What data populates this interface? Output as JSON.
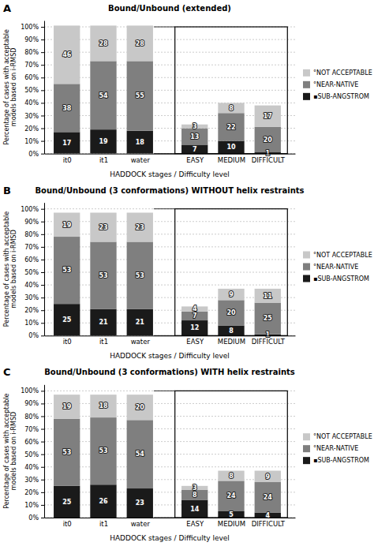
{
  "chart_data": [
    {
      "type": "bar",
      "stacked": true,
      "data_labels": true,
      "grid": true,
      "legend": "right",
      "title": "Bound/Unbound (extended)",
      "annotations": [
        "A"
      ],
      "x_label": "HADDOCK stages / Difficulty level",
      "y_label": "Percentage of cases with acceptable\nmodels based on i-RMSD",
      "categories": [
        "it0",
        "it1",
        "water",
        "EASY",
        "MEDIUM",
        "DIFFICULT"
      ],
      "series": [
        {
          "name": "▪SUB-ANGSTROM",
          "color": "#1a1a1a",
          "values": [
            17,
            19,
            18,
            7,
            10,
            1
          ]
        },
        {
          "name": "°NEAR-NATIVE",
          "color": "#7f7f7f",
          "values": [
            38,
            54,
            55,
            13,
            22,
            20
          ]
        },
        {
          "name": "°NOT ACCEPTABLE",
          "color": "#c8c8c8",
          "values": [
            46,
            28,
            28,
            3,
            8,
            17
          ]
        }
      ],
      "ylim": [
        0,
        105
      ],
      "yticks": [
        {
          "value": 0,
          "label": "0%"
        },
        {
          "value": 10,
          "label": "10%"
        },
        {
          "value": 20,
          "label": "20%"
        },
        {
          "value": 30,
          "label": "30%"
        },
        {
          "value": 40,
          "label": "40%"
        },
        {
          "value": 50,
          "label": "50%"
        },
        {
          "value": 60,
          "label": "60%"
        },
        {
          "value": 70,
          "label": "70%"
        },
        {
          "value": 80,
          "label": "80%"
        },
        {
          "value": 90,
          "label": "90%"
        },
        {
          "value": 100,
          "label": "100%"
        }
      ]
    },
    {
      "type": "bar",
      "stacked": true,
      "data_labels": true,
      "grid": true,
      "legend": "right",
      "title": "Bound/Unbound (3 conformations) WITHOUT helix restraints",
      "annotations": [
        "B"
      ],
      "x_label": "HADDOCK stages / Difficulty level",
      "y_label": "Percentage of cases with acceptable\nmodels based on i-RMSD",
      "categories": [
        "it0",
        "it1",
        "water",
        "EASY",
        "MEDIUM",
        "DIFFICULT"
      ],
      "series": [
        {
          "name": "▪SUB-ANGSTROM",
          "color": "#1a1a1a",
          "values": [
            25,
            21,
            21,
            12,
            8,
            1
          ]
        },
        {
          "name": "°NEAR-NATIVE",
          "color": "#7f7f7f",
          "values": [
            53,
            53,
            53,
            7,
            20,
            25
          ]
        },
        {
          "name": "°NOT ACCEPTABLE",
          "color": "#c8c8c8",
          "values": [
            19,
            23,
            23,
            4,
            9,
            11
          ]
        }
      ],
      "ylim": [
        0,
        105
      ],
      "yticks": [
        {
          "value": 0,
          "label": "0%"
        },
        {
          "value": 10,
          "label": "10%"
        },
        {
          "value": 20,
          "label": "20%"
        },
        {
          "value": 30,
          "label": "30%"
        },
        {
          "value": 40,
          "label": "40%"
        },
        {
          "value": 50,
          "label": "50%"
        },
        {
          "value": 60,
          "label": "60%"
        },
        {
          "value": 70,
          "label": "70%"
        },
        {
          "value": 80,
          "label": "80%"
        },
        {
          "value": 90,
          "label": "90%"
        },
        {
          "value": 100,
          "label": "100%"
        }
      ]
    },
    {
      "type": "bar",
      "stacked": true,
      "data_labels": true,
      "grid": true,
      "legend": "right",
      "title": "Bound/Unbound (3 conformations) WITH helix restraints",
      "annotations": [
        "C"
      ],
      "x_label": "HADDOCK stages / Difficulty level",
      "y_label": "Percentage of cases with acceptable\nmodels based on i-RMSD",
      "categories": [
        "it0",
        "it1",
        "water",
        "EASY",
        "MEDIUM",
        "DIFFICULT"
      ],
      "series": [
        {
          "name": "▪SUB-ANGSTROM",
          "color": "#1a1a1a",
          "values": [
            25,
            26,
            23,
            14,
            5,
            4
          ]
        },
        {
          "name": "°NEAR-NATIVE",
          "color": "#7f7f7f",
          "values": [
            53,
            53,
            54,
            8,
            24,
            24
          ]
        },
        {
          "name": "°NOT ACCEPTABLE",
          "color": "#c8c8c8",
          "values": [
            19,
            18,
            20,
            3,
            8,
            9
          ]
        }
      ],
      "ylim": [
        0,
        105
      ],
      "yticks": [
        {
          "value": 0,
          "label": "0%"
        },
        {
          "value": 10,
          "label": "10%"
        },
        {
          "value": 20,
          "label": "20%"
        },
        {
          "value": 30,
          "label": "30%"
        },
        {
          "value": 40,
          "label": "40%"
        },
        {
          "value": 50,
          "label": "50%"
        },
        {
          "value": 60,
          "label": "60%"
        },
        {
          "value": 70,
          "label": "70%"
        },
        {
          "value": 80,
          "label": "80%"
        },
        {
          "value": 90,
          "label": "90%"
        },
        {
          "value": 100,
          "label": "100%"
        }
      ]
    }
  ]
}
